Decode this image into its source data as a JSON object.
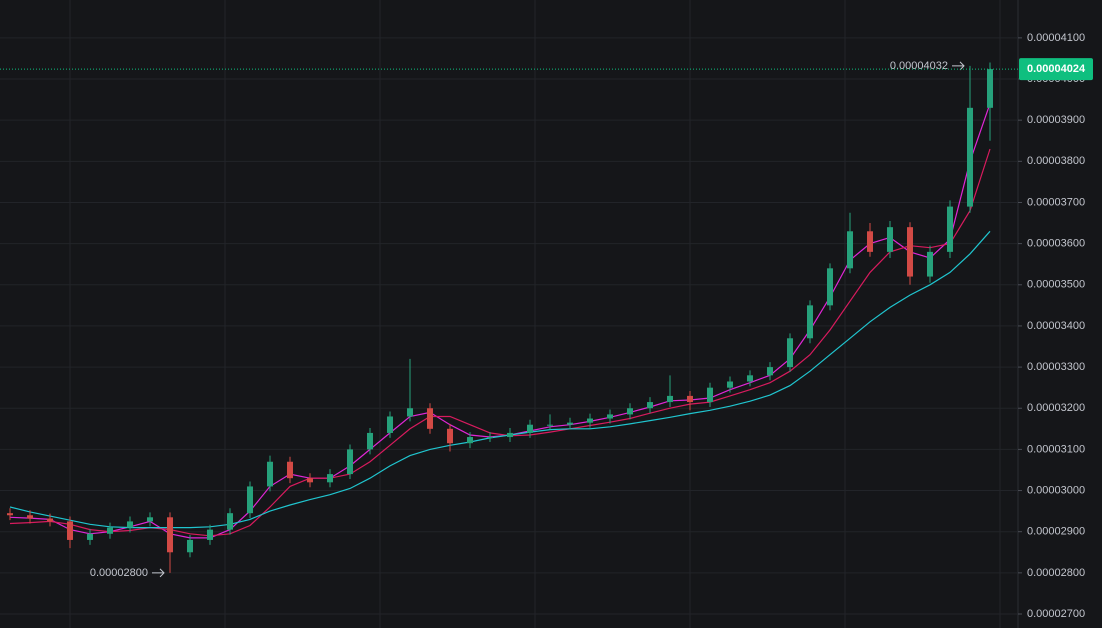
{
  "chart_data": {
    "type": "candlestick",
    "up_color": "#26a17b",
    "down_color": "#d24a45",
    "grid": true,
    "ylim": [
      2.666e-05,
      4.192e-05
    ],
    "yticks": [
      {
        "value": 2.7e-05,
        "label": "0.00002700"
      },
      {
        "value": 2.8e-05,
        "label": "0.00002800"
      },
      {
        "value": 2.9e-05,
        "label": "0.00002900"
      },
      {
        "value": 3e-05,
        "label": "0.00003000"
      },
      {
        "value": 3.1e-05,
        "label": "0.00003100"
      },
      {
        "value": 3.2e-05,
        "label": "0.00003200"
      },
      {
        "value": 3.3e-05,
        "label": "0.00003300"
      },
      {
        "value": 3.4e-05,
        "label": "0.00003400"
      },
      {
        "value": 3.5e-05,
        "label": "0.00003500"
      },
      {
        "value": 3.6e-05,
        "label": "0.00003600"
      },
      {
        "value": 3.7e-05,
        "label": "0.00003700"
      },
      {
        "value": 3.8e-05,
        "label": "0.00003800"
      },
      {
        "value": 3.9e-05,
        "label": "0.00003900"
      },
      {
        "value": 4e-05,
        "label": "0.00004000"
      },
      {
        "value": 4.1e-05,
        "label": "0.00004100"
      }
    ],
    "open": [
      2.945e-05,
      2.94e-05,
      2.932e-05,
      2.925e-05,
      2.88e-05,
      2.895e-05,
      2.91e-05,
      2.925e-05,
      2.935e-05,
      2.85e-05,
      2.88e-05,
      2.905e-05,
      2.945e-05,
      3.01e-05,
      3.07e-05,
      3.03e-05,
      3.02e-05,
      3.04e-05,
      3.1e-05,
      3.14e-05,
      3.18e-05,
      3.2e-05,
      3.15e-05,
      3.115e-05,
      3.13e-05,
      3.13e-05,
      3.14e-05,
      3.16e-05,
      3.16e-05,
      3.165e-05,
      3.175e-05,
      3.185e-05,
      3.2e-05,
      3.215e-05,
      3.23e-05,
      3.215e-05,
      3.25e-05,
      3.265e-05,
      3.28e-05,
      3.3e-05,
      3.37e-05,
      3.45e-05,
      3.54e-05,
      3.63e-05,
      3.58e-05,
      3.64e-05,
      3.52e-05,
      3.58e-05,
      3.69e-05,
      3.93e-05
    ],
    "high": [
      2.957e-05,
      2.952e-05,
      2.944e-05,
      2.937e-05,
      2.907e-05,
      2.922e-05,
      2.937e-05,
      2.947e-05,
      2.947e-05,
      2.892e-05,
      2.917e-05,
      2.957e-05,
      3.022e-05,
      3.085e-05,
      3.082e-05,
      3.042e-05,
      3.052e-05,
      3.112e-05,
      3.152e-05,
      3.192e-05,
      3.32e-05,
      3.212e-05,
      3.162e-05,
      3.142e-05,
      3.142e-05,
      3.152e-05,
      3.172e-05,
      3.185e-05,
      3.177e-05,
      3.187e-05,
      3.197e-05,
      3.212e-05,
      3.227e-05,
      3.28e-05,
      3.242e-05,
      3.262e-05,
      3.277e-05,
      3.292e-05,
      3.312e-05,
      3.382e-05,
      3.462e-05,
      3.552e-05,
      3.675e-05,
      3.65e-05,
      3.655e-05,
      3.652e-05,
      3.595e-05,
      3.705e-05,
      4.032e-05,
      4.04e-05
    ],
    "low": [
      2.928e-05,
      2.92e-05,
      2.913e-05,
      2.86e-05,
      2.868e-05,
      2.883e-05,
      2.898e-05,
      2.913e-05,
      2.8e-05,
      2.838e-05,
      2.868e-05,
      2.893e-05,
      2.933e-05,
      2.998e-05,
      3.018e-05,
      3.008e-05,
      3.008e-05,
      3.028e-05,
      3.088e-05,
      3.128e-05,
      3.168e-05,
      3.138e-05,
      3.095e-05,
      3.103e-05,
      3.118e-05,
      3.118e-05,
      3.128e-05,
      3.148e-05,
      3.148e-05,
      3.153e-05,
      3.163e-05,
      3.173e-05,
      3.188e-05,
      3.203e-05,
      3.195e-05,
      3.203e-05,
      3.238e-05,
      3.253e-05,
      3.268e-05,
      3.288e-05,
      3.358e-05,
      3.438e-05,
      3.528e-05,
      3.568e-05,
      3.565e-05,
      3.5e-05,
      3.505e-05,
      3.565e-05,
      3.675e-05,
      3.85e-05
    ],
    "close": [
      2.94e-05,
      2.932e-05,
      2.925e-05,
      2.88e-05,
      2.895e-05,
      2.91e-05,
      2.925e-05,
      2.935e-05,
      2.85e-05,
      2.88e-05,
      2.905e-05,
      2.945e-05,
      3.01e-05,
      3.07e-05,
      3.03e-05,
      3.02e-05,
      3.04e-05,
      3.1e-05,
      3.14e-05,
      3.18e-05,
      3.2e-05,
      3.15e-05,
      3.115e-05,
      3.13e-05,
      3.13e-05,
      3.14e-05,
      3.16e-05,
      3.16e-05,
      3.165e-05,
      3.175e-05,
      3.185e-05,
      3.2e-05,
      3.215e-05,
      3.23e-05,
      3.215e-05,
      3.25e-05,
      3.265e-05,
      3.28e-05,
      3.3e-05,
      3.37e-05,
      3.45e-05,
      3.54e-05,
      3.63e-05,
      3.58e-05,
      3.64e-05,
      3.52e-05,
      3.58e-05,
      3.69e-05,
      3.93e-05,
      4.024e-05
    ],
    "lines": [
      {
        "color": "#e026d6",
        "values": [
          2.935e-05,
          2.933e-05,
          2.93e-05,
          2.905e-05,
          2.895e-05,
          2.9e-05,
          2.912e-05,
          2.925e-05,
          2.895e-05,
          2.885e-05,
          2.885e-05,
          2.905e-05,
          2.95e-05,
          3.01e-05,
          3.04e-05,
          3.03e-05,
          3.03e-05,
          3.06e-05,
          3.1e-05,
          3.14e-05,
          3.18e-05,
          3.19e-05,
          3.16e-05,
          3.135e-05,
          3.13e-05,
          3.135e-05,
          3.145e-05,
          3.155e-05,
          3.16e-05,
          3.168e-05,
          3.178e-05,
          3.19e-05,
          3.203e-05,
          3.218e-05,
          3.22e-05,
          3.225e-05,
          3.245e-05,
          3.262e-05,
          3.28e-05,
          3.32e-05,
          3.39e-05,
          3.47e-05,
          3.56e-05,
          3.6e-05,
          3.615e-05,
          3.58e-05,
          3.565e-05,
          3.61e-05,
          3.8e-05,
          3.94e-05
        ]
      },
      {
        "color": "#d81b5e",
        "values": [
          2.92e-05,
          2.922e-05,
          2.925e-05,
          2.918e-05,
          2.905e-05,
          2.9e-05,
          2.903e-05,
          2.91e-05,
          2.905e-05,
          2.895e-05,
          2.89e-05,
          2.895e-05,
          2.915e-05,
          2.96e-05,
          3.01e-05,
          3.03e-05,
          3.03e-05,
          3.04e-05,
          3.07e-05,
          3.11e-05,
          3.15e-05,
          3.18e-05,
          3.18e-05,
          3.16e-05,
          3.14e-05,
          3.133e-05,
          3.135e-05,
          3.142e-05,
          3.15e-05,
          3.158e-05,
          3.166e-05,
          3.175e-05,
          3.188e-05,
          3.2e-05,
          3.21e-05,
          3.215e-05,
          3.23e-05,
          3.245e-05,
          3.262e-05,
          3.29e-05,
          3.33e-05,
          3.39e-05,
          3.46e-05,
          3.53e-05,
          3.58e-05,
          3.595e-05,
          3.59e-05,
          3.6e-05,
          3.68e-05,
          3.83e-05
        ]
      },
      {
        "color": "#20c5cf",
        "values": [
          2.96e-05,
          2.948e-05,
          2.938e-05,
          2.928e-05,
          2.918e-05,
          2.912e-05,
          2.91e-05,
          2.91e-05,
          2.91e-05,
          2.91e-05,
          2.912e-05,
          2.918e-05,
          2.93e-05,
          2.95e-05,
          2.965e-05,
          2.978e-05,
          2.99e-05,
          3.005e-05,
          3.03e-05,
          3.06e-05,
          3.085e-05,
          3.1e-05,
          3.11e-05,
          3.118e-05,
          3.128e-05,
          3.135e-05,
          3.142e-05,
          3.148e-05,
          3.15e-05,
          3.15e-05,
          3.155e-05,
          3.162e-05,
          3.17e-05,
          3.178e-05,
          3.187e-05,
          3.195e-05,
          3.205e-05,
          3.217e-05,
          3.232e-05,
          3.255e-05,
          3.29e-05,
          3.33e-05,
          3.37e-05,
          3.41e-05,
          3.445e-05,
          3.475e-05,
          3.5e-05,
          3.53e-05,
          3.575e-05,
          3.63e-05
        ]
      }
    ],
    "last_price": {
      "value": 4.024e-05,
      "label": "0.00004024",
      "color": "#0fbf7f"
    },
    "annotations": [
      {
        "value": 4.032e-05,
        "label": "0.00004032"
      },
      {
        "value": 2.8e-05,
        "label": "0.00002800"
      }
    ]
  }
}
